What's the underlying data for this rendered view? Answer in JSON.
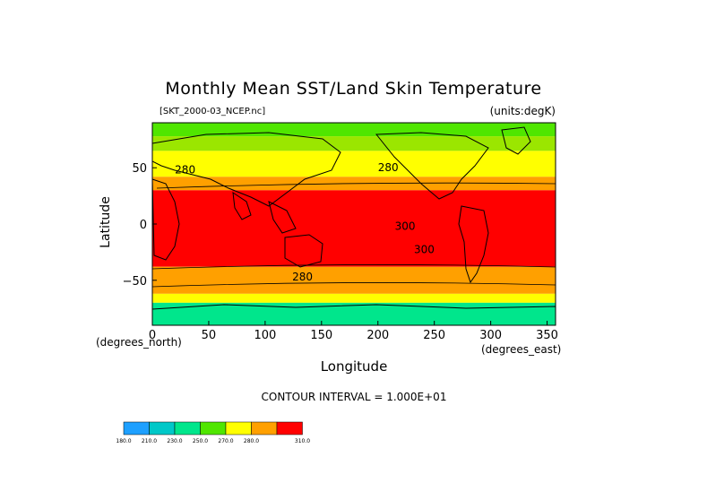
{
  "title": "Monthly Mean SST/Land Skin Temperature",
  "subtitle_left": "[SKT_2000-03_NCEP.nc]",
  "subtitle_right": "(units:degK)",
  "footer": "CONTOUR INTERVAL = 1.000E+01",
  "chart_data": {
    "type": "heatmap",
    "title": "Monthly Mean SST/Land Skin Temperature",
    "xlabel": "Longitude",
    "ylabel": "Latitude",
    "x_unit_label": "(degrees_east)",
    "y_unit_label": "(degrees_north)",
    "xlim": [
      0,
      357.5
    ],
    "ylim": [
      -90,
      90
    ],
    "x_ticks": [
      0,
      50,
      100,
      150,
      200,
      250,
      300,
      350
    ],
    "y_ticks": [
      50,
      0,
      -50
    ],
    "contour_interval": 10,
    "contour_labels": [
      {
        "value": "280",
        "lon": 20,
        "lat": 45
      },
      {
        "value": "280",
        "lon": 200,
        "lat": 47
      },
      {
        "value": "300",
        "lon": 215,
        "lat": -5
      },
      {
        "value": "300",
        "lon": 232,
        "lat": -26
      },
      {
        "value": "280",
        "lon": 124,
        "lat": -50
      }
    ],
    "bands": [
      {
        "from_lat": 90,
        "to_lat": 78,
        "level": 250
      },
      {
        "from_lat": 78,
        "to_lat": 65,
        "level": 260
      },
      {
        "from_lat": 65,
        "to_lat": 42,
        "level": 270
      },
      {
        "from_lat": 42,
        "to_lat": 30,
        "level": 280
      },
      {
        "from_lat": 30,
        "to_lat": -38,
        "level": 300
      },
      {
        "from_lat": -38,
        "to_lat": -62,
        "level": 280
      },
      {
        "from_lat": -62,
        "to_lat": -70,
        "level": 270
      },
      {
        "from_lat": -70,
        "to_lat": -90,
        "level": 230
      }
    ],
    "colorbar": {
      "levels": [
        "180.0",
        "210.0",
        "230.0",
        "250.0",
        "270.0",
        "280.0",
        "310.0"
      ],
      "colors": [
        "#1ea0ff",
        "#00c8c8",
        "#00e68c",
        "#50e600",
        "#ffff00",
        "#ffa000",
        "#ff0000"
      ]
    },
    "level_colors": {
      "230": "#00e68c",
      "250": "#50e600",
      "260": "#9be600",
      "270": "#ffff00",
      "280": "#ffa000",
      "300": "#ff0000"
    }
  }
}
